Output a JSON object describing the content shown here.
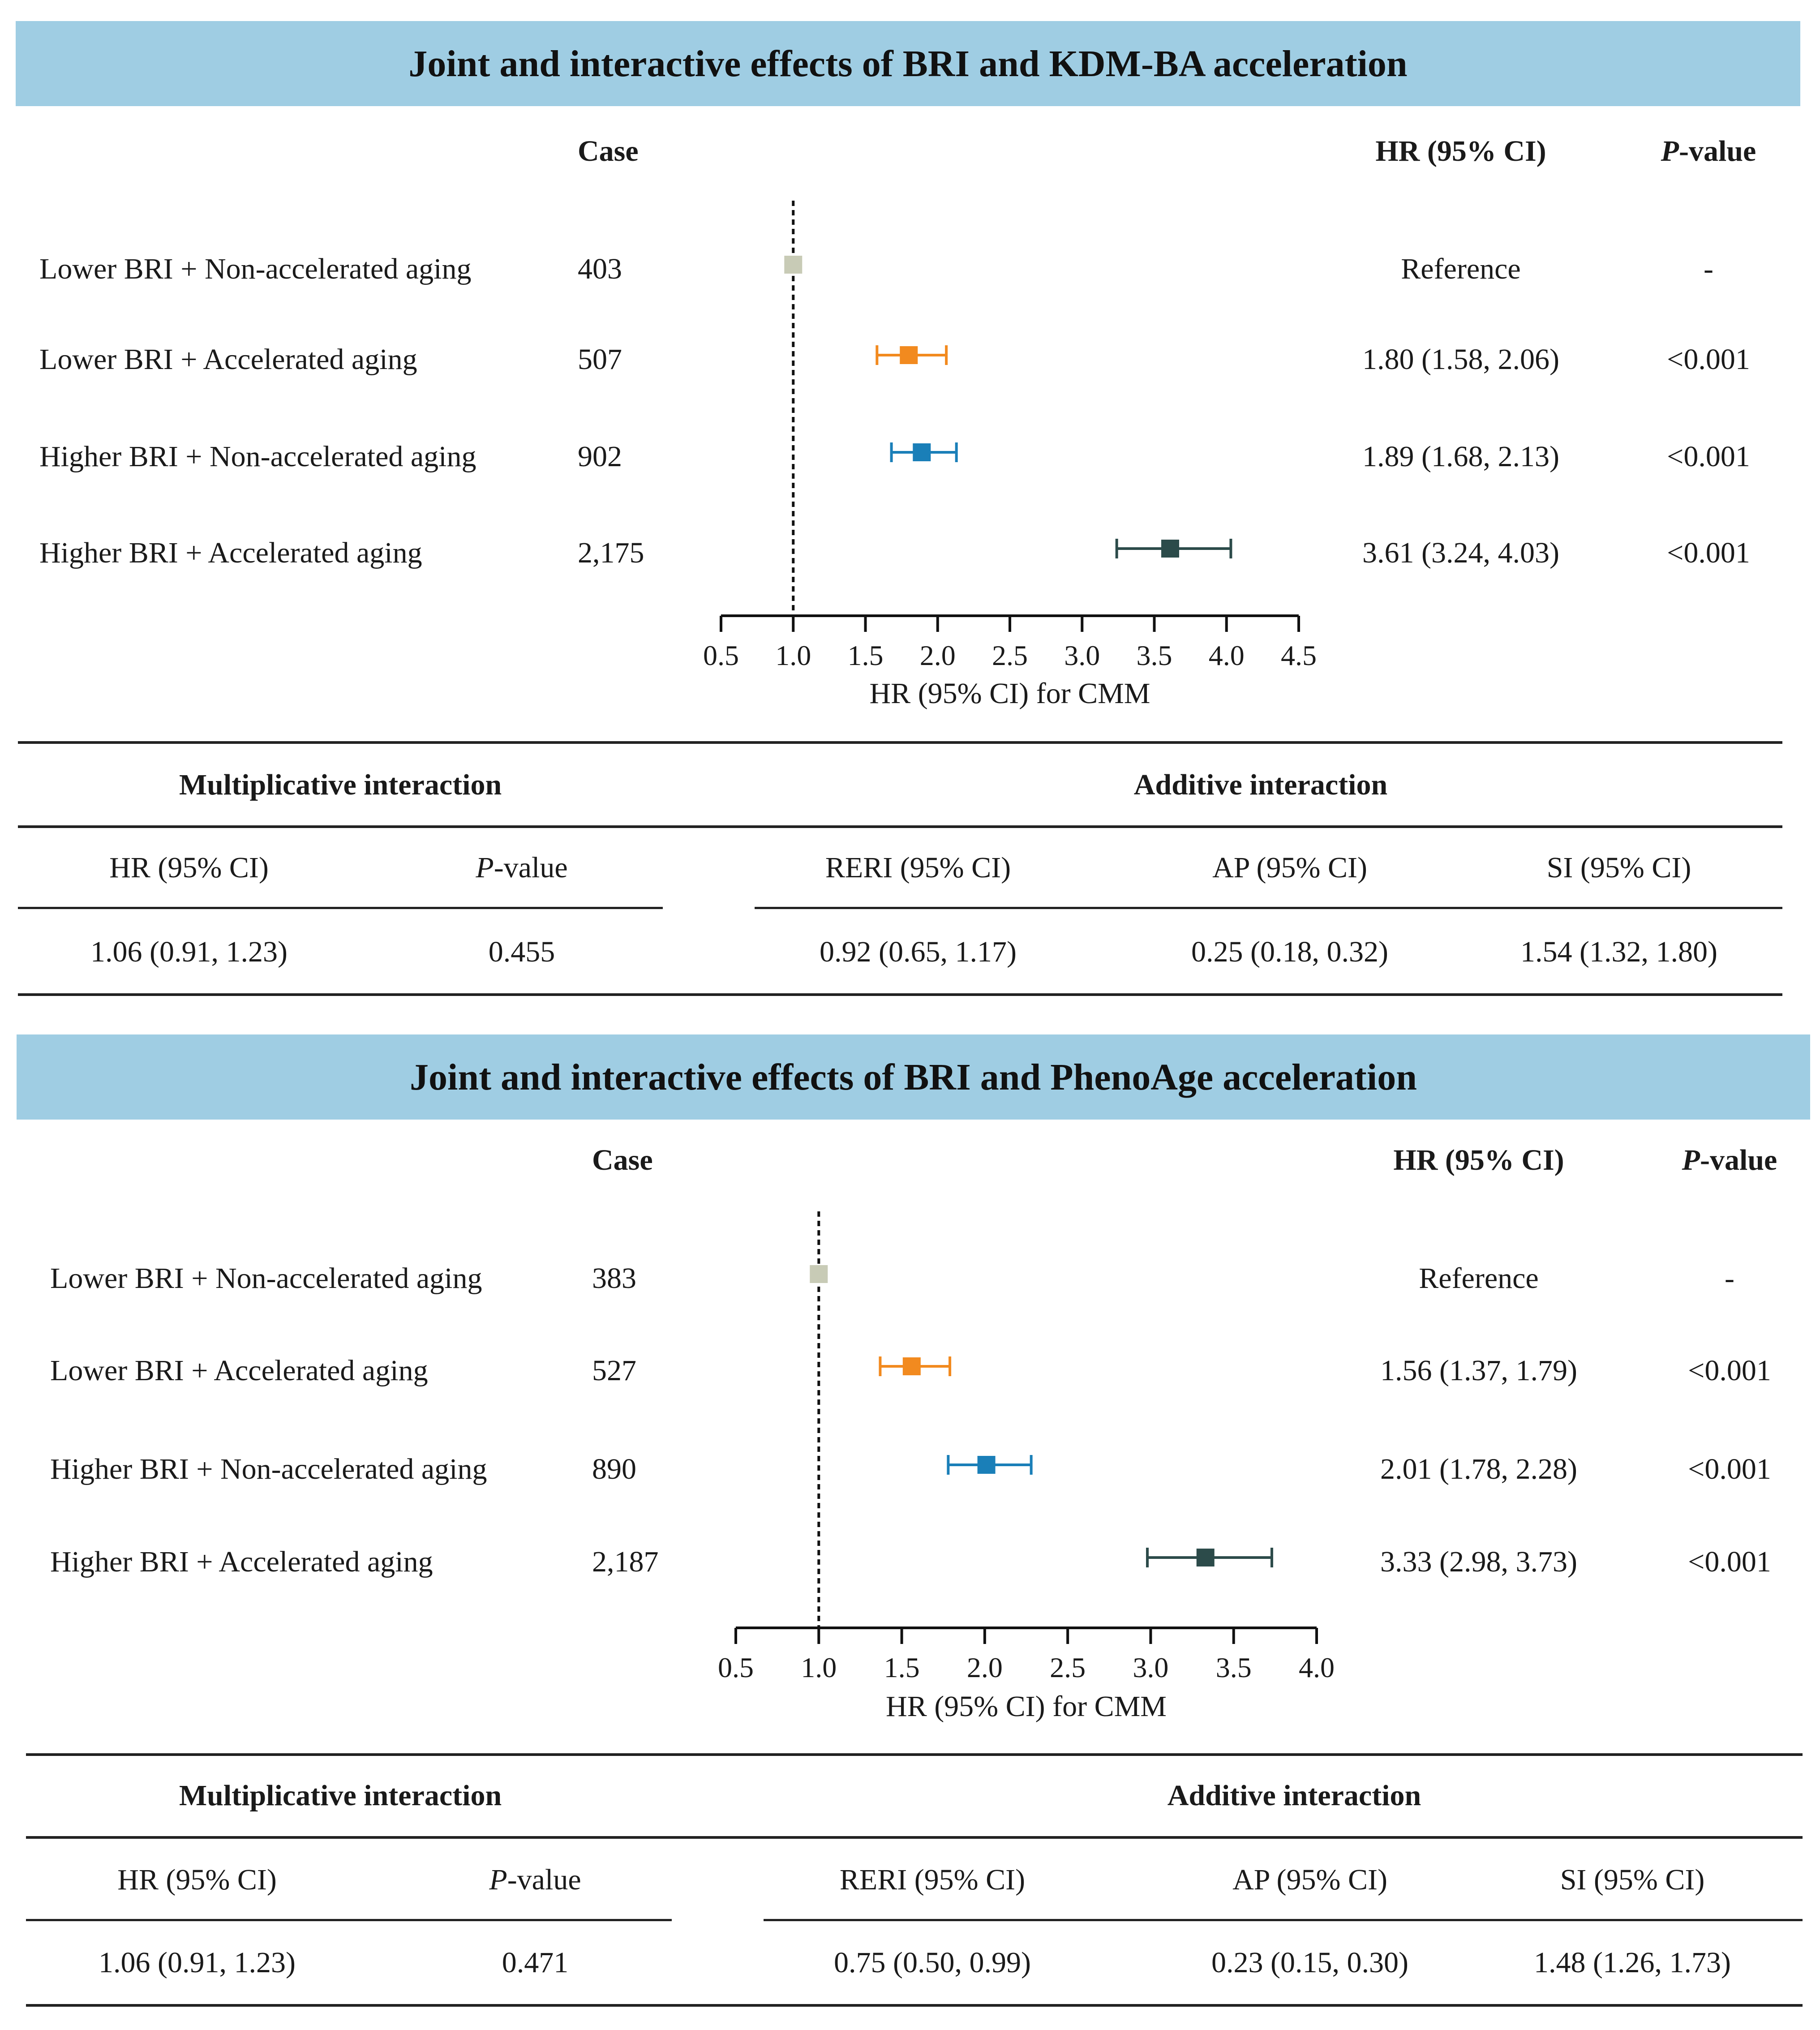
{
  "panels": [
    {
      "title": "Joint and interactive effects of BRI and KDM-BA acceleration",
      "headers": {
        "case": "Case",
        "hr": "HR (95% CI)",
        "p_prefix": "P",
        "p_suffix": "-value"
      },
      "rows": [
        {
          "label": "Lower BRI + Non-accelerated aging",
          "case": "403",
          "hr_text": "Reference",
          "p": "-"
        },
        {
          "label": "Lower BRI + Accelerated aging",
          "case": "507",
          "hr_text": "1.80 (1.58, 2.06)",
          "p": "<0.001"
        },
        {
          "label": "Higher BRI + Non-accelerated aging",
          "case": "902",
          "hr_text": "1.89 (1.68, 2.13)",
          "p": "<0.001"
        },
        {
          "label": "Higher BRI + Accelerated aging",
          "case": "2,175",
          "hr_text": "3.61 (3.24, 4.03)",
          "p": "<0.001"
        }
      ],
      "interaction": {
        "mult_title": "Multiplicative interaction",
        "add_title": "Additive interaction",
        "mult_headers": [
          "HR (95% CI)",
          "-value"
        ],
        "add_headers": [
          "RERI (95% CI)",
          "AP (95% CI)",
          "SI (95% CI)"
        ],
        "mult_values": [
          "1.06 (0.91, 1.23)",
          "0.455"
        ],
        "add_values": [
          "0.92 (0.65, 1.17)",
          "0.25 (0.18, 0.32)",
          "1.54 (1.32, 1.80)"
        ]
      }
    },
    {
      "title": "Joint and interactive effects of BRI and PhenoAge acceleration",
      "headers": {
        "case": "Case",
        "hr": "HR (95% CI)",
        "p_prefix": "P",
        "p_suffix": "-value"
      },
      "rows": [
        {
          "label": "Lower BRI + Non-accelerated aging",
          "case": "383",
          "hr_text": "Reference",
          "p": "-"
        },
        {
          "label": "Lower BRI + Accelerated aging",
          "case": "527",
          "hr_text": "1.56 (1.37, 1.79)",
          "p": "<0.001"
        },
        {
          "label": "Higher BRI + Non-accelerated aging",
          "case": "890",
          "hr_text": "2.01 (1.78, 2.28)",
          "p": "<0.001"
        },
        {
          "label": "Higher BRI + Accelerated aging",
          "case": "2,187",
          "hr_text": "3.33 (2.98, 3.73)",
          "p": "<0.001"
        }
      ],
      "interaction": {
        "mult_title": "Multiplicative interaction",
        "add_title": "Additive interaction",
        "mult_headers": [
          "HR (95% CI)",
          "-value"
        ],
        "add_headers": [
          "RERI (95% CI)",
          "AP (95% CI)",
          "SI (95% CI)"
        ],
        "mult_values": [
          "1.06 (0.91, 1.23)",
          "0.471"
        ],
        "add_values": [
          "0.75 (0.50, 0.99)",
          "0.23 (0.15, 0.30)",
          "1.48 (1.26, 1.73)"
        ]
      }
    }
  ],
  "chart_data": [
    {
      "type": "scatter",
      "xlabel": "HR (95% CI) for CMM",
      "xlim": [
        0.5,
        4.5
      ],
      "xticks": [
        "0.5",
        "1.0",
        "1.5",
        "2.0",
        "2.5",
        "3.0",
        "3.5",
        "4.0",
        "4.5"
      ],
      "reference_line": 1.0,
      "points": [
        {
          "hr": 1.0,
          "lo": null,
          "hi": null,
          "color": "#c8cbb6"
        },
        {
          "hr": 1.8,
          "lo": 1.58,
          "hi": 2.06,
          "color": "#f28a1f"
        },
        {
          "hr": 1.89,
          "lo": 1.68,
          "hi": 2.13,
          "color": "#1a7fb8"
        },
        {
          "hr": 3.61,
          "lo": 3.24,
          "hi": 4.03,
          "color": "#2c4b4a"
        }
      ]
    },
    {
      "type": "scatter",
      "xlabel": "HR (95% CI) for CMM",
      "xlim": [
        0.5,
        4.0
      ],
      "xticks": [
        "0.5",
        "1.0",
        "1.5",
        "2.0",
        "2.5",
        "3.0",
        "3.5",
        "4.0"
      ],
      "reference_line": 1.0,
      "points": [
        {
          "hr": 1.0,
          "lo": null,
          "hi": null,
          "color": "#c8cbb6"
        },
        {
          "hr": 1.56,
          "lo": 1.37,
          "hi": 1.79,
          "color": "#f28a1f"
        },
        {
          "hr": 2.01,
          "lo": 1.78,
          "hi": 2.28,
          "color": "#1a7fb8"
        },
        {
          "hr": 3.33,
          "lo": 2.98,
          "hi": 3.73,
          "color": "#2c4b4a"
        }
      ]
    }
  ],
  "colors": {
    "banner": "#9fcde3"
  }
}
